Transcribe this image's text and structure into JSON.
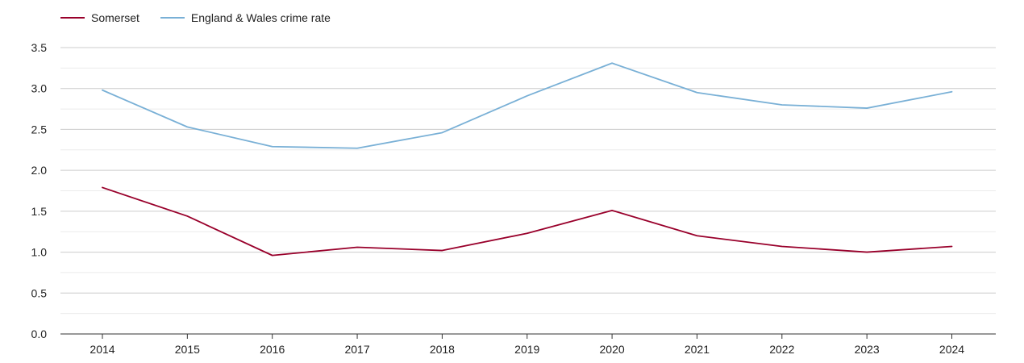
{
  "chart_data": {
    "type": "line",
    "title": "",
    "xlabel": "",
    "ylabel": "",
    "categories": [
      "2014",
      "2015",
      "2016",
      "2017",
      "2018",
      "2019",
      "2020",
      "2021",
      "2022",
      "2023",
      "2024"
    ],
    "ylim": [
      0,
      3.5
    ],
    "yticks": [
      "0.0",
      "0.5",
      "1.0",
      "1.5",
      "2.0",
      "2.5",
      "3.0",
      "3.5"
    ],
    "grid": true,
    "legend_position": "top-left",
    "series": [
      {
        "name": "Somerset",
        "color": "#99002b",
        "values": [
          1.79,
          1.44,
          0.96,
          1.06,
          1.02,
          1.23,
          1.51,
          1.2,
          1.07,
          1.0,
          1.07
        ]
      },
      {
        "name": "England & Wales crime rate",
        "color": "#79b0d6",
        "values": [
          2.98,
          2.53,
          2.29,
          2.27,
          2.46,
          2.91,
          3.31,
          2.95,
          2.8,
          2.76,
          2.96
        ]
      }
    ]
  }
}
